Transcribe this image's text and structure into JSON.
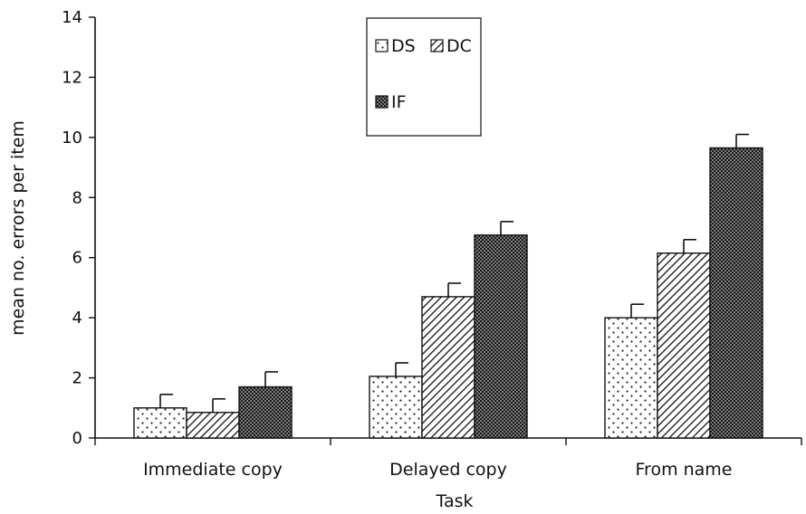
{
  "chart_data": {
    "type": "bar",
    "title": "",
    "xlabel": "Task",
    "ylabel": "mean no. errors per item",
    "ylim": [
      0,
      14
    ],
    "yticks": [
      0,
      2,
      4,
      6,
      8,
      10,
      12,
      14
    ],
    "grid": false,
    "legend_position": "top-center",
    "categories": [
      "Immediate copy",
      "Delayed copy",
      "From name"
    ],
    "series": [
      {
        "name": "DS",
        "values": [
          1.0,
          2.05,
          4.0
        ],
        "errors": [
          0.45,
          0.45,
          0.45
        ],
        "pattern": "dots"
      },
      {
        "name": "DC",
        "values": [
          0.85,
          4.7,
          6.15
        ],
        "errors": [
          0.45,
          0.45,
          0.45
        ],
        "pattern": "diagonal-hatch"
      },
      {
        "name": "IF",
        "values": [
          1.7,
          6.75,
          9.65
        ],
        "errors": [
          0.5,
          0.45,
          0.45
        ],
        "pattern": "crosshatch"
      }
    ],
    "colors": {
      "axis": "#111111",
      "bar_outline": "#111111",
      "background": "#ffffff"
    }
  }
}
